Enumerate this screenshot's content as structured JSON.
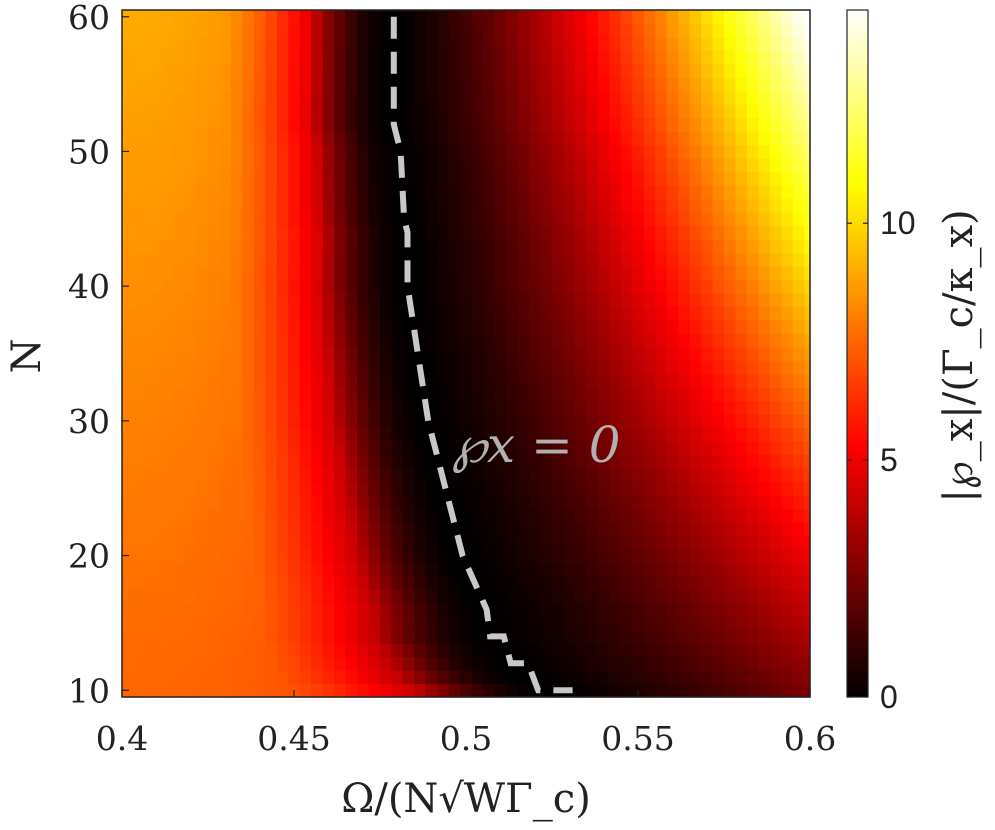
{
  "chart_data": {
    "type": "heatmap",
    "title": "",
    "xlabel": "Ω/(N√WΓ_c)",
    "ylabel": "N",
    "colorbar_label": "|℘_x|/(Γ_c/κ_x)",
    "xlim": [
      0.4,
      0.6
    ],
    "ylim": [
      9.5,
      60.5
    ],
    "x_ticks": [
      "0.4",
      "0.45",
      "0.5",
      "0.55",
      "0.6"
    ],
    "y_ticks": [
      "10",
      "20",
      "30",
      "40",
      "50",
      "60"
    ],
    "x_tick_values": [
      0.4,
      0.45,
      0.5,
      0.55,
      0.6
    ],
    "y_tick_values": [
      10,
      20,
      30,
      40,
      50,
      60
    ],
    "colorbar_ticks": [
      "0",
      "5",
      "10"
    ],
    "colorbar_tick_values": [
      0,
      5,
      10
    ],
    "colorbar_range": [
      0,
      14.5
    ],
    "colormap": "hot",
    "n_range": [
      10,
      60
    ],
    "omega_range": [
      0.4,
      0.6
    ],
    "omega_steps": 61,
    "value_samples": [
      {
        "N": 10,
        "omega_0.40": 5.0,
        "omega_0.47": 1.8,
        "omega_0.53": 0.0,
        "omega_0.60": 2.5
      },
      {
        "N": 30,
        "omega_0.40": 7.0,
        "omega_0.48": 0.3,
        "omega_0.55": 5.0,
        "omega_0.60": 8.0
      },
      {
        "N": 60,
        "omega_0.40": 8.0,
        "omega_0.48": 0.0,
        "omega_0.55": 10.0,
        "omega_0.60": 14.5
      }
    ],
    "zero_contour": {
      "label": "℘x = 0",
      "style": "dashed",
      "color": "#c8c8c8",
      "points": [
        {
          "N": 60,
          "omega": 0.479
        },
        {
          "N": 52,
          "omega": 0.479
        },
        {
          "N": 50,
          "omega": 0.481
        },
        {
          "N": 45,
          "omega": 0.482
        },
        {
          "N": 44,
          "omega": 0.483
        },
        {
          "N": 40,
          "omega": 0.483
        },
        {
          "N": 35,
          "omega": 0.486
        },
        {
          "N": 30,
          "omega": 0.489
        },
        {
          "N": 25,
          "omega": 0.494
        },
        {
          "N": 20,
          "omega": 0.499
        },
        {
          "N": 16,
          "omega": 0.506
        },
        {
          "N": 14,
          "omega": 0.507
        },
        {
          "N": 14,
          "omega": 0.511
        },
        {
          "N": 12,
          "omega": 0.513
        },
        {
          "N": 12,
          "omega": 0.518
        },
        {
          "N": 10,
          "omega": 0.521
        },
        {
          "N": 10,
          "omega": 0.531
        }
      ]
    }
  }
}
